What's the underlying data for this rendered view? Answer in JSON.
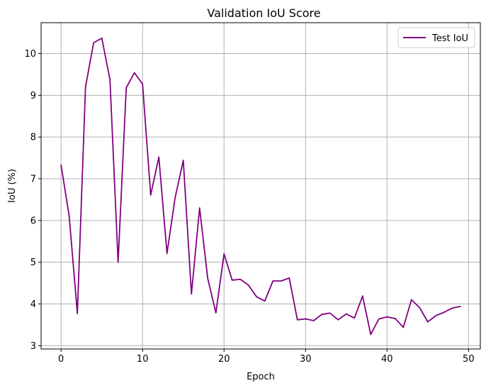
{
  "chart_data": {
    "type": "line",
    "title": "Validation IoU Score",
    "xlabel": "Epoch",
    "ylabel": "IoU (%)",
    "xlim": [
      -2.45,
      51.45
    ],
    "ylim": [
      2.92,
      10.74
    ],
    "xticks": [
      0,
      10,
      20,
      30,
      40,
      50
    ],
    "yticks": [
      3,
      4,
      5,
      6,
      7,
      8,
      9,
      10
    ],
    "grid": true,
    "legend_position": "top-right",
    "series": [
      {
        "name": "Test IoU",
        "color": "#800080",
        "x": [
          0,
          1,
          2,
          3,
          4,
          5,
          6,
          7,
          8,
          9,
          10,
          11,
          12,
          13,
          14,
          15,
          16,
          17,
          18,
          19,
          20,
          21,
          22,
          23,
          24,
          25,
          26,
          27,
          28,
          29,
          30,
          31,
          32,
          33,
          34,
          35,
          36,
          37,
          38,
          39,
          40,
          41,
          42,
          43,
          44,
          45,
          46,
          47,
          48,
          49
        ],
        "y": [
          7.33,
          6.1,
          3.77,
          9.2,
          10.26,
          10.37,
          9.38,
          5.0,
          9.18,
          9.54,
          9.27,
          6.61,
          7.52,
          5.21,
          6.55,
          7.44,
          4.24,
          6.3,
          4.61,
          3.79,
          5.2,
          4.57,
          4.59,
          4.45,
          4.17,
          4.07,
          4.55,
          4.55,
          4.62,
          3.62,
          3.64,
          3.6,
          3.75,
          3.78,
          3.62,
          3.76,
          3.66,
          4.19,
          3.27,
          3.64,
          3.69,
          3.65,
          3.44,
          4.1,
          3.91,
          3.57,
          3.72,
          3.8,
          3.9,
          3.94
        ]
      }
    ]
  }
}
